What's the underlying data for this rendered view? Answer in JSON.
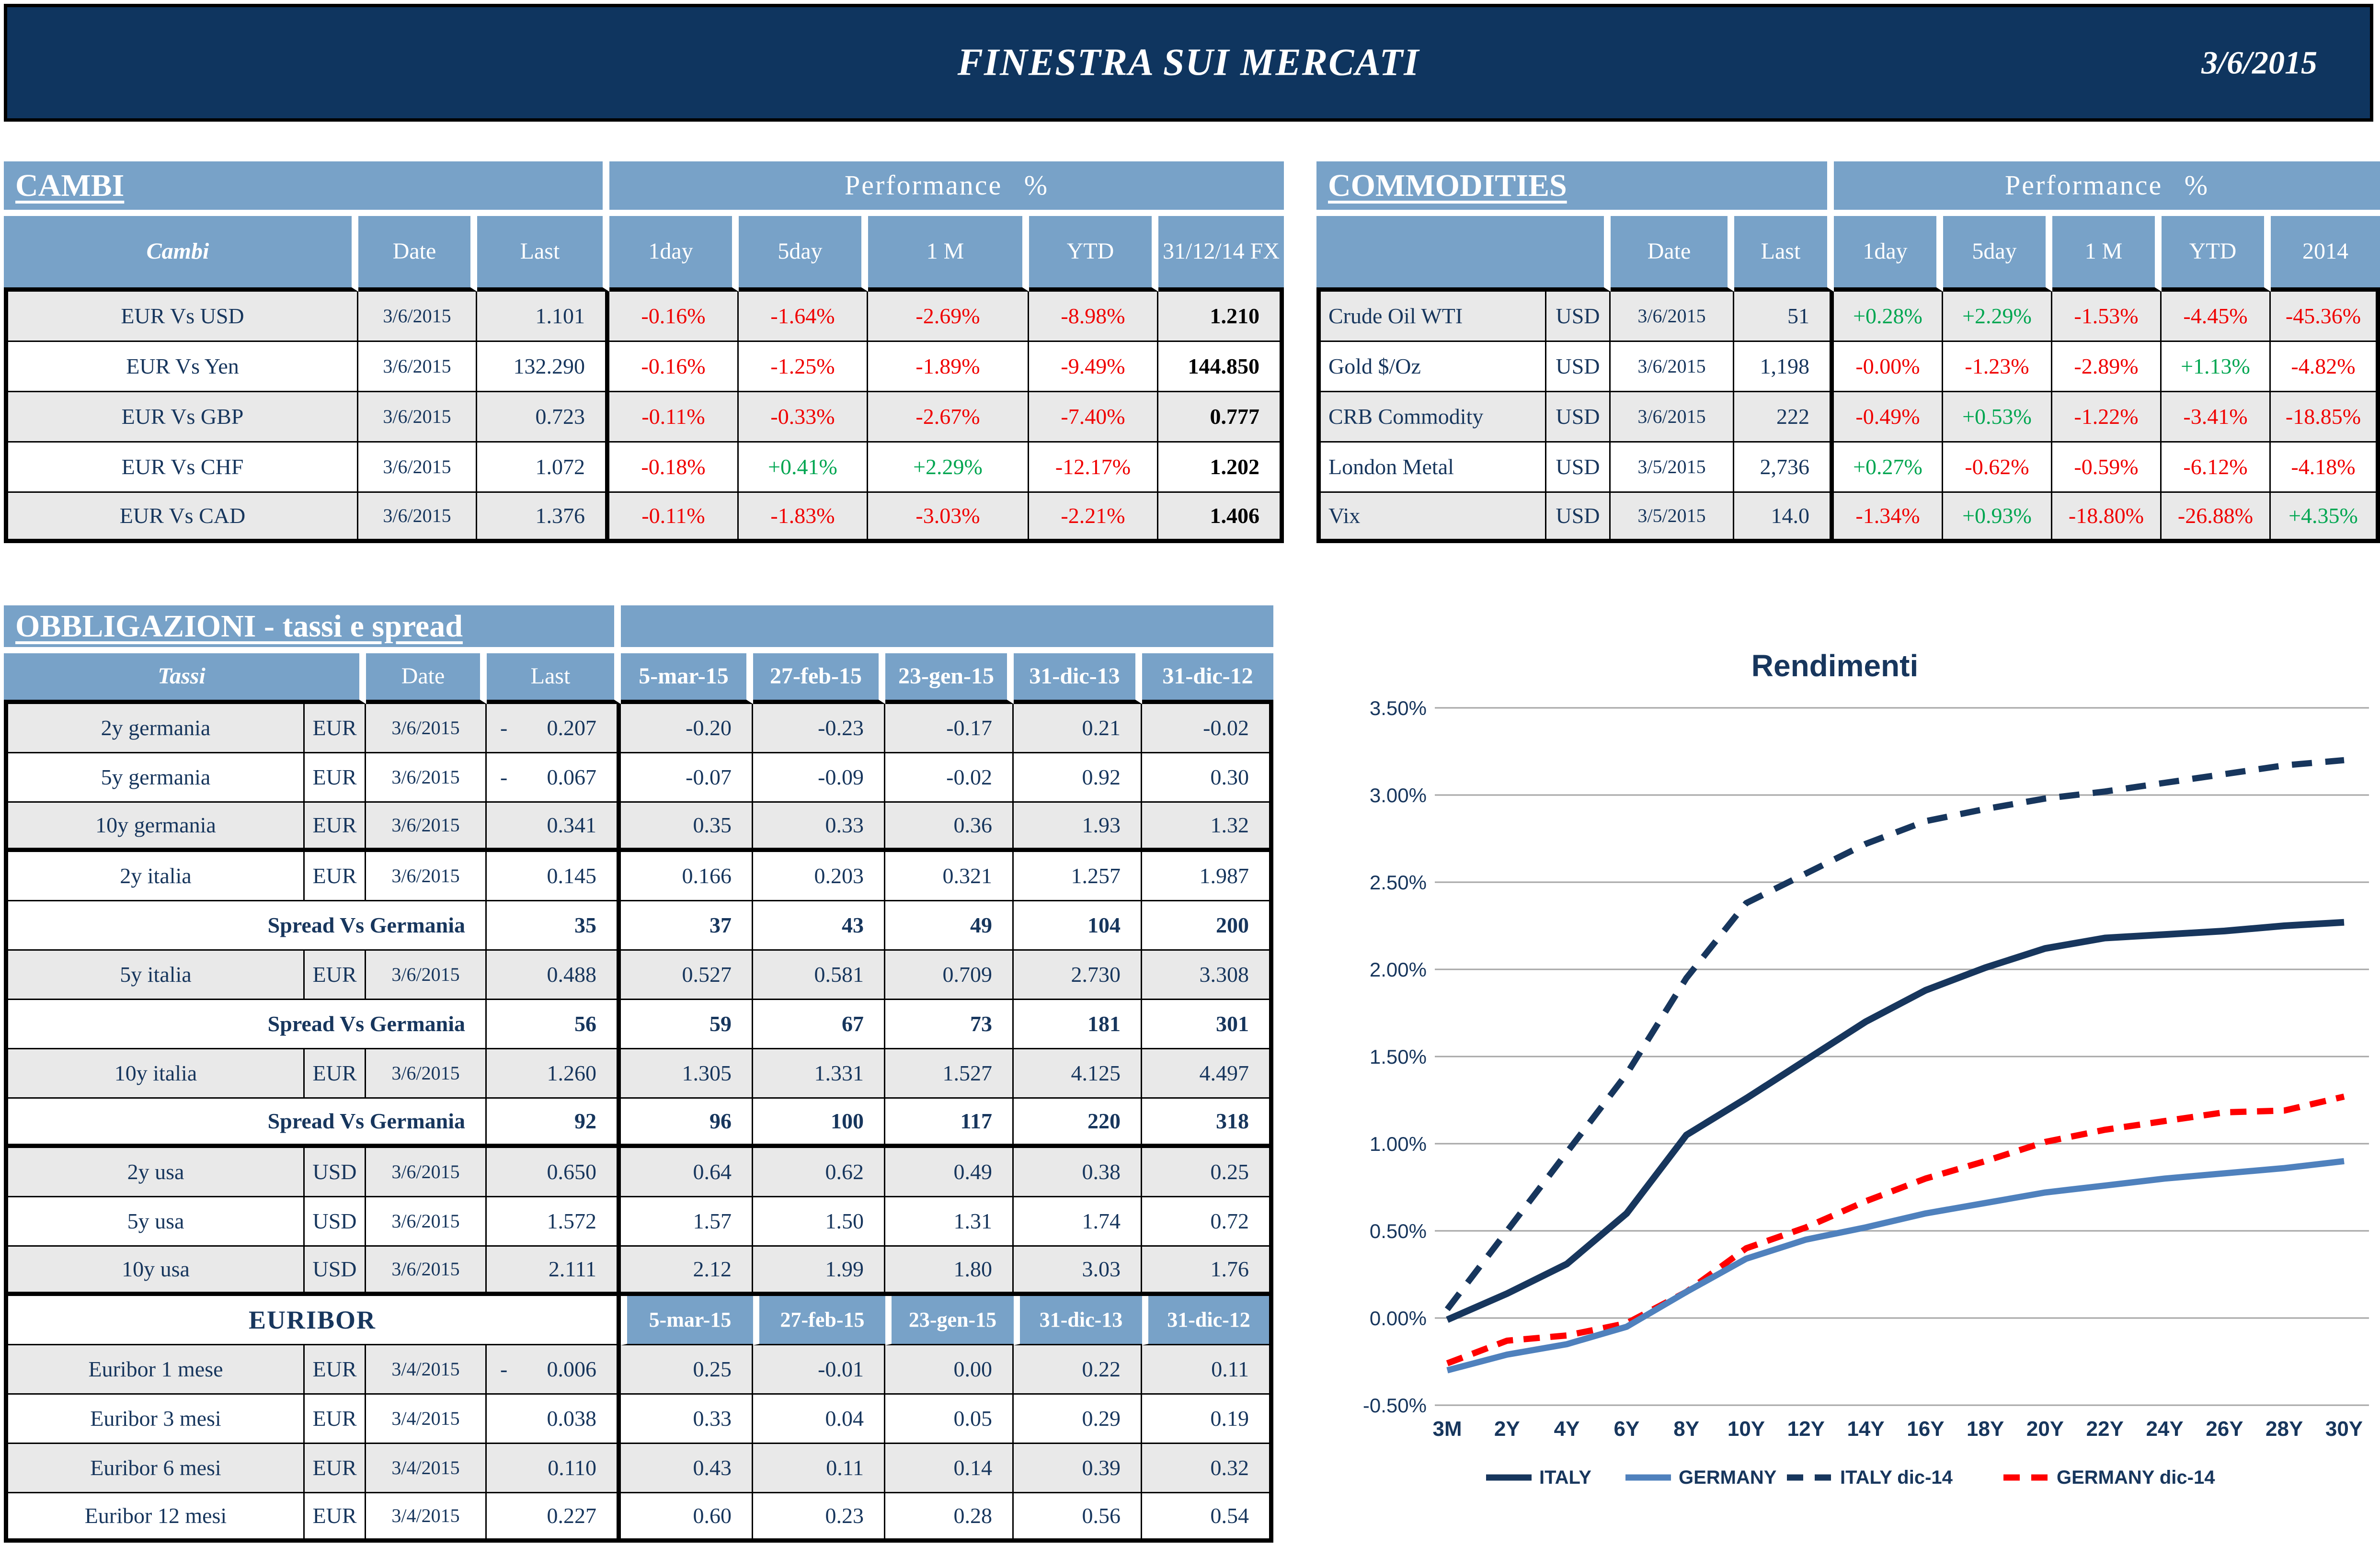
{
  "header": {
    "title": "FINESTRA SUI MERCATI",
    "date": "3/6/2015"
  },
  "cambi": {
    "title": "CAMBI",
    "perf_header": "Performance %",
    "col_name": "Cambi",
    "col_date": "Date",
    "col_last": "Last",
    "perf_cols": [
      "1day",
      "5day",
      "1 M",
      "YTD",
      "31/12/14 FX"
    ],
    "rows": [
      {
        "name": "EUR Vs USD",
        "date": "3/6/2015",
        "last": "1.101",
        "perf": [
          "-0.16%",
          "-1.64%",
          "-2.69%",
          "-8.98%"
        ],
        "fx": "1.210"
      },
      {
        "name": "EUR Vs Yen",
        "date": "3/6/2015",
        "last": "132.290",
        "perf": [
          "-0.16%",
          "-1.25%",
          "-1.89%",
          "-9.49%"
        ],
        "fx": "144.850"
      },
      {
        "name": "EUR Vs GBP",
        "date": "3/6/2015",
        "last": "0.723",
        "perf": [
          "-0.11%",
          "-0.33%",
          "-2.67%",
          "-7.40%"
        ],
        "fx": "0.777"
      },
      {
        "name": "EUR Vs CHF",
        "date": "3/6/2015",
        "last": "1.072",
        "perf": [
          "-0.18%",
          "+0.41%",
          "+2.29%",
          "-12.17%"
        ],
        "fx": "1.202"
      },
      {
        "name": "EUR Vs CAD",
        "date": "3/6/2015",
        "last": "1.376",
        "perf": [
          "-0.11%",
          "-1.83%",
          "-3.03%",
          "-2.21%"
        ],
        "fx": "1.406"
      }
    ]
  },
  "commodities": {
    "title": "COMMODITIES",
    "perf_header": "Performance %",
    "col_date": "Date",
    "col_last": "Last",
    "perf_cols": [
      "1day",
      "5day",
      "1 M",
      "YTD",
      "2014"
    ],
    "rows": [
      {
        "name": "Crude Oil WTI",
        "curr": "USD",
        "date": "3/6/2015",
        "last": "51",
        "perf": [
          "+0.28%",
          "+2.29%",
          "-1.53%",
          "-4.45%",
          "-45.36%"
        ]
      },
      {
        "name": "Gold $/Oz",
        "curr": "USD",
        "date": "3/6/2015",
        "last": "1,198",
        "perf": [
          "-0.00%",
          "-1.23%",
          "-2.89%",
          "+1.13%",
          "-4.82%"
        ]
      },
      {
        "name": "CRB Commodity",
        "curr": "USD",
        "date": "3/6/2015",
        "last": "222",
        "perf": [
          "-0.49%",
          "+0.53%",
          "-1.22%",
          "-3.41%",
          "-18.85%"
        ]
      },
      {
        "name": "London Metal",
        "curr": "USD",
        "date": "3/5/2015",
        "last": "2,736",
        "perf": [
          "+0.27%",
          "-0.62%",
          "-0.59%",
          "-6.12%",
          "-4.18%"
        ]
      },
      {
        "name": "Vix",
        "curr": "USD",
        "date": "3/5/2015",
        "last": "14.0",
        "perf": [
          "-1.34%",
          "+0.93%",
          "-18.80%",
          "-26.88%",
          "+4.35%"
        ]
      }
    ]
  },
  "obbligazioni": {
    "title": "OBBLIGAZIONI - tassi e spread",
    "col_name": "Tassi",
    "col_date": "Date",
    "col_last": "Last",
    "date_cols": [
      "5-mar-15",
      "27-feb-15",
      "23-gen-15",
      "31-dic-13",
      "31-dic-12"
    ],
    "rows": [
      {
        "type": "rate",
        "name": "2y germania",
        "curr": "EUR",
        "date": "3/6/2015",
        "neg": true,
        "last": "0.207",
        "values": [
          "-0.20",
          "-0.23",
          "-0.17",
          "0.21",
          "-0.02"
        ],
        "shade": "gray"
      },
      {
        "type": "rate",
        "name": "5y germania",
        "curr": "EUR",
        "date": "3/6/2015",
        "neg": true,
        "last": "0.067",
        "values": [
          "-0.07",
          "-0.09",
          "-0.02",
          "0.92",
          "0.30"
        ],
        "shade": "white"
      },
      {
        "type": "rate",
        "name": "10y germania",
        "curr": "EUR",
        "date": "3/6/2015",
        "last": "0.341",
        "values": [
          "0.35",
          "0.33",
          "0.36",
          "1.93",
          "1.32"
        ],
        "shade": "gray",
        "thick_bottom": true
      },
      {
        "type": "rate",
        "name": "2y italia",
        "curr": "EUR",
        "date": "3/6/2015",
        "last": "0.145",
        "values": [
          "0.166",
          "0.203",
          "0.321",
          "1.257",
          "1.987"
        ],
        "shade": "white"
      },
      {
        "type": "spread",
        "name": "Spread Vs Germania",
        "last": "35",
        "values": [
          "37",
          "43",
          "49",
          "104",
          "200"
        ],
        "shade": "white"
      },
      {
        "type": "rate",
        "name": "5y italia",
        "curr": "EUR",
        "date": "3/6/2015",
        "last": "0.488",
        "values": [
          "0.527",
          "0.581",
          "0.709",
          "2.730",
          "3.308"
        ],
        "shade": "gray"
      },
      {
        "type": "spread",
        "name": "Spread Vs Germania",
        "last": "56",
        "values": [
          "59",
          "67",
          "73",
          "181",
          "301"
        ],
        "shade": "white"
      },
      {
        "type": "rate",
        "name": "10y italia",
        "curr": "EUR",
        "date": "3/6/2015",
        "last": "1.260",
        "values": [
          "1.305",
          "1.331",
          "1.527",
          "4.125",
          "4.497"
        ],
        "shade": "gray"
      },
      {
        "type": "spread",
        "name": "Spread Vs Germania",
        "last": "92",
        "values": [
          "96",
          "100",
          "117",
          "220",
          "318"
        ],
        "shade": "white",
        "thick_bottom": true
      },
      {
        "type": "rate",
        "name": "2y usa",
        "curr": "USD",
        "date": "3/6/2015",
        "last": "0.650",
        "values": [
          "0.64",
          "0.62",
          "0.49",
          "0.38",
          "0.25"
        ],
        "shade": "gray"
      },
      {
        "type": "rate",
        "name": "5y usa",
        "curr": "USD",
        "date": "3/6/2015",
        "last": "1.572",
        "values": [
          "1.57",
          "1.50",
          "1.31",
          "1.74",
          "0.72"
        ],
        "shade": "white"
      },
      {
        "type": "rate",
        "name": "10y usa",
        "curr": "USD",
        "date": "3/6/2015",
        "last": "2.111",
        "values": [
          "2.12",
          "1.99",
          "1.80",
          "3.03",
          "1.76"
        ],
        "shade": "gray",
        "thick_bottom": true
      },
      {
        "type": "euribor_header",
        "label": "EURIBOR",
        "dates": [
          "5-mar-15",
          "27-feb-15",
          "23-gen-15",
          "31-dic-13",
          "31-dic-12"
        ],
        "shade": "white"
      },
      {
        "type": "rate",
        "name": "Euribor 1 mese",
        "curr": "EUR",
        "date": "3/4/2015",
        "neg": true,
        "last": "0.006",
        "values": [
          "0.25",
          "-0.01",
          "0.00",
          "0.22",
          "0.11"
        ],
        "shade": "gray"
      },
      {
        "type": "rate",
        "name": "Euribor 3 mesi",
        "curr": "EUR",
        "date": "3/4/2015",
        "last": "0.038",
        "values": [
          "0.33",
          "0.04",
          "0.05",
          "0.29",
          "0.19"
        ],
        "shade": "white"
      },
      {
        "type": "rate",
        "name": "Euribor 6 mesi",
        "curr": "EUR",
        "date": "3/4/2015",
        "last": "0.110",
        "values": [
          "0.43",
          "0.11",
          "0.14",
          "0.39",
          "0.32"
        ],
        "shade": "gray"
      },
      {
        "type": "rate",
        "name": "Euribor 12 mesi",
        "curr": "EUR",
        "date": "3/4/2015",
        "last": "0.227",
        "values": [
          "0.60",
          "0.23",
          "0.28",
          "0.56",
          "0.54"
        ],
        "shade": "white"
      }
    ]
  },
  "chart_data": {
    "type": "line",
    "title": "Rendimenti",
    "x_labels": [
      "3M",
      "2Y",
      "4Y",
      "6Y",
      "8Y",
      "10Y",
      "12Y",
      "14Y",
      "16Y",
      "18Y",
      "20Y",
      "22Y",
      "24Y",
      "26Y",
      "28Y",
      "30Y"
    ],
    "ylabel": "",
    "xlabel": "",
    "ylim": [
      -0.5,
      3.5
    ],
    "y_tick_step": 0.5,
    "grid": true,
    "legend_position": "bottom",
    "series": [
      {
        "name": "ITALY",
        "style": "solid",
        "color": "#17365d",
        "width": 14,
        "values": [
          -0.01,
          0.14,
          0.31,
          0.6,
          1.05,
          1.26,
          1.48,
          1.7,
          1.88,
          2.01,
          2.12,
          2.18,
          2.2,
          2.22,
          2.25,
          2.27
        ]
      },
      {
        "name": "GERMANY",
        "style": "solid",
        "color": "#4f81bd",
        "width": 13,
        "values": [
          -0.3,
          -0.21,
          -0.15,
          -0.05,
          0.15,
          0.34,
          0.45,
          0.52,
          0.6,
          0.66,
          0.72,
          0.76,
          0.8,
          0.83,
          0.86,
          0.9
        ]
      },
      {
        "name": "ITALY dic-14",
        "style": "dashed",
        "color": "#17365d",
        "width": 13,
        "values": [
          0.05,
          0.5,
          0.95,
          1.4,
          1.95,
          2.38,
          2.55,
          2.72,
          2.85,
          2.92,
          2.98,
          3.02,
          3.07,
          3.12,
          3.17,
          3.2
        ]
      },
      {
        "name": "GERMANY dic-14",
        "style": "dashed",
        "color": "#ff0000",
        "width": 13,
        "values": [
          -0.26,
          -0.13,
          -0.1,
          -0.03,
          0.15,
          0.4,
          0.52,
          0.67,
          0.8,
          0.9,
          1.01,
          1.08,
          1.13,
          1.18,
          1.19,
          1.27
        ]
      }
    ]
  },
  "colors": {
    "navy": "#17365d",
    "header_bg": "#0f355f",
    "band_blue": "#78a2c8",
    "row_gray": "#e9e9e9",
    "pos_green": "#00a651",
    "neg_red": "#f00000",
    "grid": "#a6a6a6"
  }
}
